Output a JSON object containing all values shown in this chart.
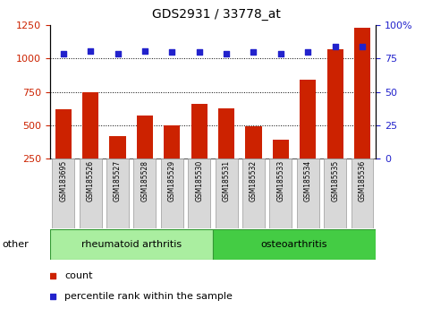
{
  "title": "GDS2931 / 33778_at",
  "categories": [
    "GSM183695",
    "GSM185526",
    "GSM185527",
    "GSM185528",
    "GSM185529",
    "GSM185530",
    "GSM185531",
    "GSM185532",
    "GSM185533",
    "GSM185534",
    "GSM185535",
    "GSM185536"
  ],
  "counts": [
    620,
    750,
    420,
    575,
    500,
    660,
    625,
    490,
    390,
    840,
    1070,
    1230
  ],
  "percentile_ranks": [
    79,
    81,
    79,
    81,
    80,
    80,
    79,
    80,
    79,
    80,
    84,
    84
  ],
  "group1_label": "rheumatoid arthritis",
  "group1_indices": [
    0,
    1,
    2,
    3,
    4,
    5
  ],
  "group2_label": "osteoarthritis",
  "group2_indices": [
    6,
    7,
    8,
    9,
    10,
    11
  ],
  "other_label": "other",
  "bar_color": "#cc2200",
  "dot_color": "#2222cc",
  "group1_color": "#aaeea0",
  "group2_color": "#44cc44",
  "ylim_left": [
    250,
    1250
  ],
  "ylim_right": [
    0,
    100
  ],
  "yticks_left": [
    250,
    500,
    750,
    1000,
    1250
  ],
  "yticks_right": [
    0,
    25,
    50,
    75,
    100
  ],
  "grid_values": [
    500,
    750,
    1000
  ],
  "legend_count_label": "count",
  "legend_pct_label": "percentile rank within the sample",
  "tick_label_bg": "#d8d8d8",
  "title_fontsize": 10,
  "axis_fontsize": 8,
  "legend_fontsize": 8
}
